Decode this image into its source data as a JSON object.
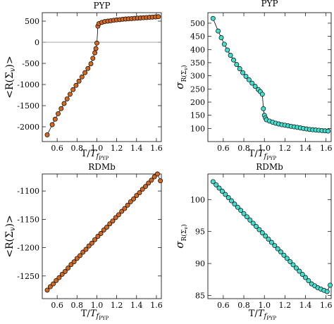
{
  "chart_data": [
    {
      "type": "scatter",
      "title": "PYP",
      "xlabel": "T/T_{f_{PYP}}",
      "ylabel": "<R(Σ_v)>",
      "xlim": [
        0.45,
        1.65
      ],
      "ylim": [
        -2350,
        700
      ],
      "xticks": [
        "0.6",
        "0.8",
        "1.0",
        "1.2",
        "1.4",
        "1.6"
      ],
      "xtick_values": [
        0.6,
        0.8,
        1.0,
        1.2,
        1.4,
        1.6
      ],
      "yticks": [
        "-2000",
        "-1500",
        "-1000",
        "-500",
        "0",
        "500"
      ],
      "ytick_values": [
        -2000,
        -1500,
        -1000,
        -500,
        0,
        500
      ],
      "zero_line": true,
      "connect_line": true,
      "marker_color": "#d2691e",
      "series": [
        {
          "x": [
            0.5,
            0.55,
            0.58,
            0.61,
            0.64,
            0.67,
            0.7,
            0.73,
            0.76,
            0.79,
            0.82,
            0.85,
            0.88,
            0.91,
            0.94,
            0.96,
            0.98,
            0.99,
            1.0,
            1.01,
            1.02,
            1.05,
            1.08,
            1.11,
            1.14,
            1.17,
            1.2,
            1.23,
            1.26,
            1.29,
            1.32,
            1.35,
            1.38,
            1.41,
            1.44,
            1.47,
            1.5,
            1.53,
            1.56,
            1.59,
            1.62
          ],
          "y": [
            -2190,
            -1950,
            -1820,
            -1690,
            -1570,
            -1450,
            -1340,
            -1230,
            -1120,
            -1020,
            -920,
            -820,
            -720,
            -620,
            -510,
            -380,
            -250,
            -150,
            -20,
            380,
            440,
            470,
            490,
            500,
            510,
            520,
            530,
            535,
            545,
            550,
            555,
            560,
            565,
            570,
            575,
            580,
            585,
            590,
            595,
            600,
            605
          ]
        }
      ]
    },
    {
      "type": "scatter",
      "title": "PYP",
      "xlabel": "T/T_{f_{PYP}}",
      "ylabel": "σ_{R(Σ_v)}",
      "xlim": [
        0.45,
        1.65
      ],
      "ylim": [
        50,
        540
      ],
      "xticks": [
        "0.6",
        "0.8",
        "1.0",
        "1.2",
        "1.4",
        "1.6"
      ],
      "xtick_values": [
        0.6,
        0.8,
        1.0,
        1.2,
        1.4,
        1.6
      ],
      "yticks": [
        "100",
        "150",
        "200",
        "250",
        "300",
        "350",
        "400",
        "450",
        "500"
      ],
      "ytick_values": [
        100,
        150,
        200,
        250,
        300,
        350,
        400,
        450,
        500
      ],
      "zero_line": false,
      "connect_line": true,
      "marker_color": "#40e0d0",
      "series": [
        {
          "x": [
            0.5,
            0.55,
            0.58,
            0.61,
            0.64,
            0.67,
            0.7,
            0.73,
            0.76,
            0.79,
            0.82,
            0.85,
            0.88,
            0.91,
            0.94,
            0.96,
            0.98,
            0.99,
            1.0,
            1.01,
            1.02,
            1.05,
            1.08,
            1.11,
            1.14,
            1.17,
            1.2,
            1.23,
            1.26,
            1.29,
            1.32,
            1.35,
            1.38,
            1.41,
            1.44,
            1.47,
            1.5,
            1.53,
            1.56,
            1.59,
            1.62
          ],
          "y": [
            518,
            470,
            445,
            420,
            398,
            378,
            360,
            343,
            327,
            312,
            298,
            285,
            272,
            260,
            248,
            240,
            230,
            175,
            150,
            140,
            133,
            128,
            124,
            120,
            117,
            114,
            112,
            110,
            108,
            106,
            104,
            102,
            100,
            98,
            96,
            95,
            94,
            93,
            92,
            91,
            90
          ]
        }
      ]
    },
    {
      "type": "scatter",
      "title": "RDMb",
      "xlabel": "T/T_{f_{PYP}}",
      "ylabel": "<R(Σ_v)>",
      "xlim": [
        0.45,
        1.65
      ],
      "ylim": [
        -1290,
        -1070
      ],
      "xticks": [
        "0.6",
        "0.8",
        "1.0",
        "1.2",
        "1.4",
        "1.6"
      ],
      "xtick_values": [
        0.6,
        0.8,
        1.0,
        1.2,
        1.4,
        1.6
      ],
      "yticks": [
        "-1250",
        "-1200",
        "-1150",
        "-1100"
      ],
      "ytick_values": [
        -1250,
        -1200,
        -1150,
        -1100
      ],
      "zero_line": false,
      "connect_line": true,
      "marker_color": "#d2691e",
      "series": [
        {
          "x": [
            0.5,
            0.53,
            0.56,
            0.59,
            0.62,
            0.65,
            0.68,
            0.71,
            0.74,
            0.77,
            0.8,
            0.83,
            0.86,
            0.89,
            0.92,
            0.95,
            0.98,
            1.01,
            1.04,
            1.07,
            1.1,
            1.13,
            1.16,
            1.19,
            1.22,
            1.25,
            1.28,
            1.31,
            1.34,
            1.37,
            1.4,
            1.43,
            1.46,
            1.49,
            1.52,
            1.55,
            1.58,
            1.61,
            1.64
          ],
          "y": [
            -1275,
            -1269,
            -1264,
            -1258,
            -1253,
            -1247,
            -1242,
            -1236,
            -1230,
            -1225,
            -1219,
            -1214,
            -1208,
            -1203,
            -1197,
            -1192,
            -1186,
            -1180,
            -1175,
            -1169,
            -1164,
            -1158,
            -1153,
            -1147,
            -1142,
            -1136,
            -1131,
            -1125,
            -1119,
            -1114,
            -1108,
            -1103,
            -1097,
            -1092,
            -1086,
            -1081,
            -1075,
            -1070,
            -1082
          ]
        }
      ]
    },
    {
      "type": "scatter",
      "title": "RDMb",
      "xlabel": "T/T_{f_{PYP}}",
      "ylabel": "σ_{R(Σ_v)}",
      "xlim": [
        0.45,
        1.65
      ],
      "ylim": [
        84.5,
        104
      ],
      "xticks": [
        "0.6",
        "0.8",
        "1.0",
        "1.2",
        "1.4",
        "1.6"
      ],
      "xtick_values": [
        0.6,
        0.8,
        1.0,
        1.2,
        1.4,
        1.6
      ],
      "yticks": [
        "85",
        "90",
        "95",
        "100"
      ],
      "ytick_values": [
        85,
        90,
        95,
        100
      ],
      "zero_line": false,
      "connect_line": true,
      "marker_color": "#40e0d0",
      "series": [
        {
          "x": [
            0.5,
            0.53,
            0.56,
            0.59,
            0.62,
            0.65,
            0.68,
            0.71,
            0.74,
            0.77,
            0.8,
            0.83,
            0.86,
            0.89,
            0.92,
            0.95,
            0.98,
            1.01,
            1.04,
            1.07,
            1.1,
            1.13,
            1.16,
            1.19,
            1.22,
            1.25,
            1.28,
            1.31,
            1.34,
            1.37,
            1.4,
            1.43,
            1.46,
            1.49,
            1.52,
            1.55,
            1.58,
            1.61,
            1.64
          ],
          "y": [
            102.8,
            102.3,
            101.8,
            101.3,
            100.8,
            100.3,
            99.8,
            99.3,
            98.8,
            98.3,
            97.8,
            97.3,
            96.8,
            96.3,
            95.8,
            95.3,
            94.8,
            94.3,
            93.8,
            93.3,
            92.8,
            92.3,
            91.8,
            91.3,
            90.8,
            90.3,
            89.8,
            89.3,
            88.8,
            88.3,
            87.8,
            87.3,
            86.8,
            86.5,
            86.2,
            86.0,
            85.8,
            85.6,
            86.6
          ]
        }
      ]
    }
  ]
}
